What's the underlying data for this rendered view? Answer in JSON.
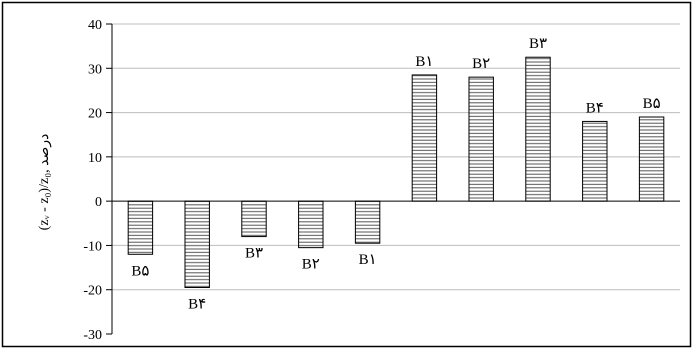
{
  "chart_data": {
    "type": "bar",
    "ylabel": "(zᵥ - z₀)/z₀, درصد",
    "ylim": [
      -30,
      40
    ],
    "yticks": [
      40,
      30,
      20,
      10,
      0,
      -10,
      -20,
      -30
    ],
    "grid": true,
    "bar_fill": "horizontal-hatch",
    "colors": {
      "bar_stroke": "#000000",
      "hatch": "#555555",
      "grid": "#bdbdbd",
      "axis": "#000000"
    },
    "categories": [
      "B۵",
      "B۴",
      "B۳",
      "B۲",
      "B۱",
      "B۱",
      "B۲",
      "B۳",
      "B۴",
      "B۵"
    ],
    "values": [
      -12,
      -19.5,
      -8,
      -10.5,
      -9.5,
      28.5,
      28,
      32.5,
      18,
      19
    ]
  }
}
